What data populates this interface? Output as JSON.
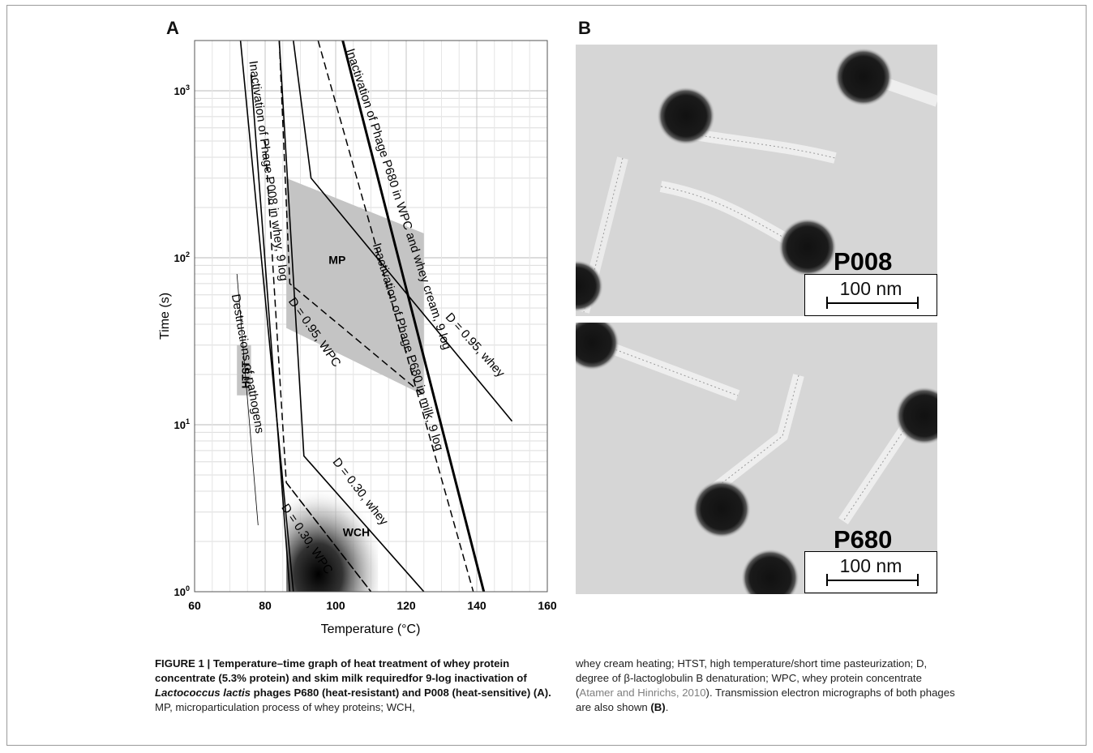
{
  "panels": {
    "a": "A",
    "b": "B"
  },
  "chart_data": {
    "type": "line",
    "xlabel": "Temperature (°C)",
    "ylabel": "Time (s)",
    "xlim": [
      60,
      160
    ],
    "ylim": [
      1,
      2000
    ],
    "y_scale": "log",
    "x_ticks": [
      60,
      80,
      100,
      120,
      140,
      160
    ],
    "y_ticks": [
      {
        "value": 1,
        "base": "10",
        "exp": "0"
      },
      {
        "value": 10,
        "base": "10",
        "exp": "1"
      },
      {
        "value": 100,
        "base": "10",
        "exp": "2"
      },
      {
        "value": 1000,
        "base": "10",
        "exp": "3"
      }
    ],
    "grid": true,
    "series": [
      {
        "name": "Inactivation of Phage P008 in whey, 9 log",
        "style": "solid",
        "points": [
          [
            73,
            2000
          ],
          [
            88,
            1
          ]
        ]
      },
      {
        "name": "",
        "style": "solid",
        "points": [
          [
            76,
            1250
          ],
          [
            87,
            1
          ]
        ]
      },
      {
        "name": "Destructions of pathogens",
        "style": "thin",
        "points": [
          [
            72,
            80
          ],
          [
            78,
            2.5
          ]
        ]
      },
      {
        "name": "",
        "style": "dashed",
        "points": [
          [
            80,
            500
          ],
          [
            86,
            4.5
          ],
          [
            110,
            1
          ]
        ]
      },
      {
        "name": "D = 0.30, WPC",
        "style": "dashed",
        "points": [
          [
            86,
            4.5
          ],
          [
            110,
            1
          ]
        ]
      },
      {
        "name": "D = 0.95, WPC",
        "style": "dashed",
        "points": [
          [
            84,
            2000
          ],
          [
            87,
            70
          ],
          [
            125,
            15
          ]
        ]
      },
      {
        "name": "D = 0.30, whey",
        "style": "solid",
        "points": [
          [
            84,
            2000
          ],
          [
            91,
            6.5
          ],
          [
            125,
            1
          ]
        ]
      },
      {
        "name": "D = 0.95, whey",
        "style": "solid",
        "points": [
          [
            88,
            2000
          ],
          [
            93,
            300
          ],
          [
            150,
            10.5
          ]
        ]
      },
      {
        "name": "Inactivation of Phage P680 in milk, 9 log",
        "style": "dashed",
        "points": [
          [
            95,
            2000
          ],
          [
            139,
            1
          ]
        ]
      },
      {
        "name": "Inactivation of Phage P680 in WPC and whey cream, 9 log",
        "style": "bold",
        "points": [
          [
            102,
            2000
          ],
          [
            142,
            1
          ]
        ]
      }
    ],
    "regions": [
      {
        "label": "MP",
        "points": [
          [
            86,
            300
          ],
          [
            125,
            140
          ],
          [
            125,
            15
          ],
          [
            86,
            38
          ]
        ]
      },
      {
        "label": "HTST",
        "points": [
          [
            72,
            30
          ],
          [
            76,
            30
          ],
          [
            76,
            15
          ],
          [
            72,
            15
          ]
        ]
      },
      {
        "label": "WCH",
        "points": [
          [
            86,
            5
          ],
          [
            112,
            5
          ],
          [
            112,
            1
          ],
          [
            86,
            1
          ]
        ]
      }
    ],
    "annotations": [
      {
        "text": "Inactivation of Phage P008 in whey, 9 log"
      },
      {
        "text": "Destructions of pathogens"
      },
      {
        "text": "D = 0.30, WPC"
      },
      {
        "text": "D = 0.95, WPC"
      },
      {
        "text": "D = 0.30, whey"
      },
      {
        "text": "D = 0.95, whey"
      },
      {
        "text": "Inactivation of Phage P680 in milk, 9 log"
      },
      {
        "text": "Inactivation of Phage P680 in WPC and whey cream, 9 log"
      },
      {
        "text": "MP"
      },
      {
        "text": "HTST"
      },
      {
        "text": "WCH"
      }
    ]
  },
  "micrographs": [
    {
      "label": "P008",
      "scale": "100 nm"
    },
    {
      "label": "P680",
      "scale": "100 nm"
    }
  ],
  "caption": {
    "left": {
      "bold1": "FIGURE 1 | Temperature–time graph of heat treatment of whey protein concentrate (5.3% protein) and skim milk requiredfor 9-log inactivation of ",
      "italic": "Lactococcus lactis",
      "bold2": " phages P680 (heat-resistant) and P008 (heat-sensitive) (A).",
      "normal": " MP, microparticulation process of whey proteins; WCH,"
    },
    "right": {
      "text1": "whey cream heating; HTST, high temperature/short time pasteurization; D, degree of β-lactoglobulin B denaturation; WPC, whey protein concentrate (",
      "cite": "Atamer and Hinrichs, 2010",
      "text2": "). Transmission electron micrographs of both phages are also shown ",
      "bold": "(B)",
      "end": "."
    }
  }
}
